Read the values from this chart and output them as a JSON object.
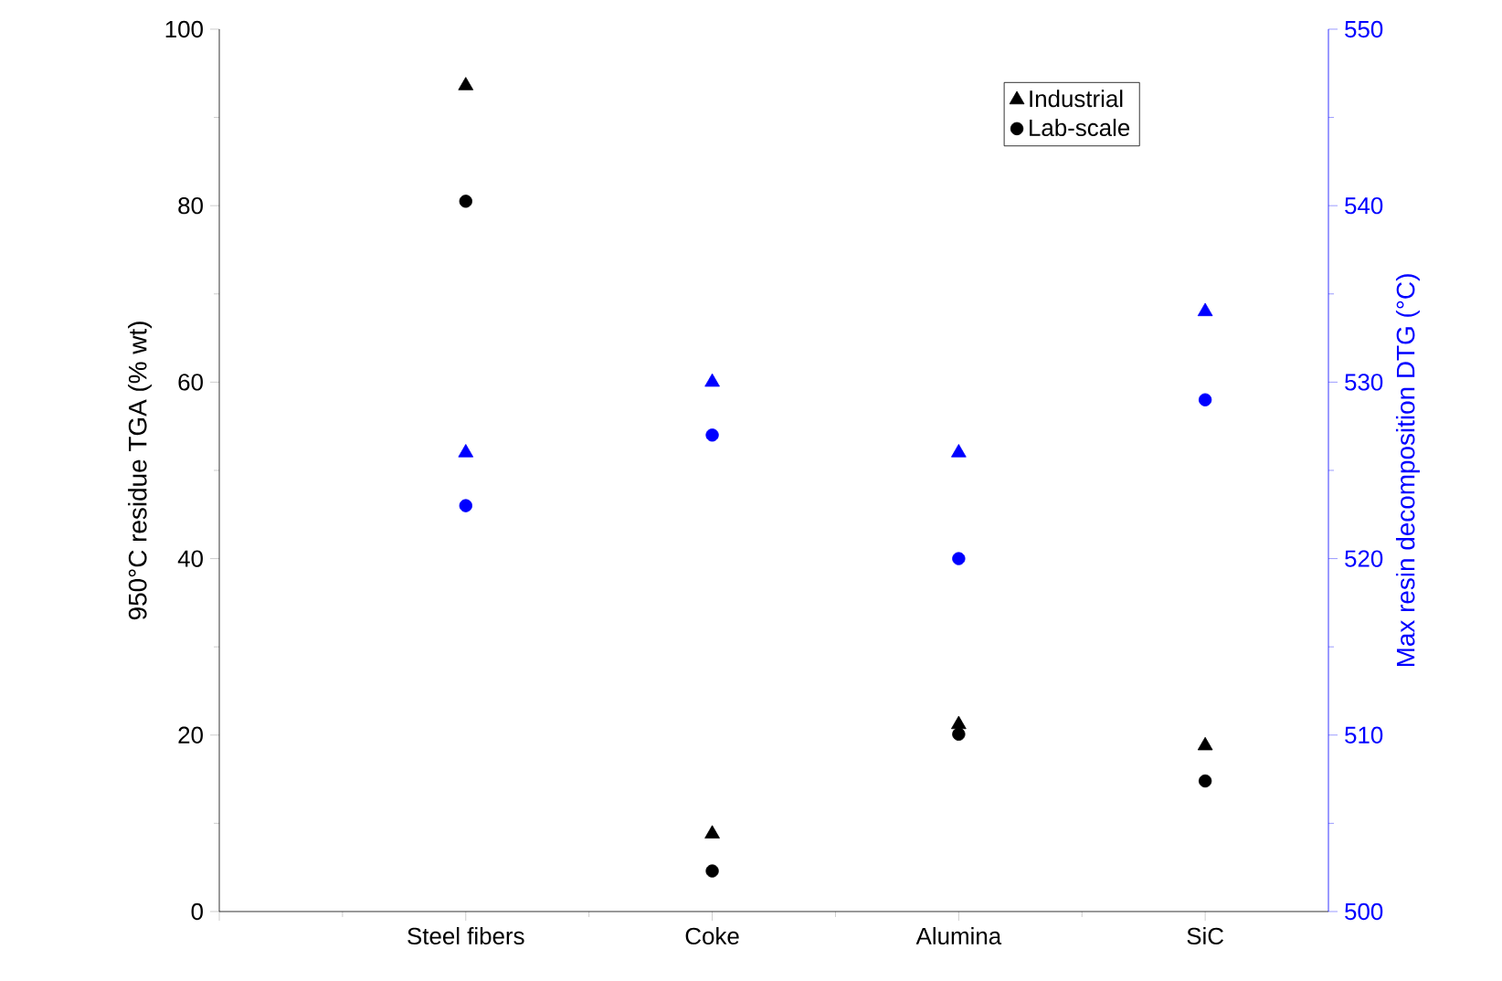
{
  "chart_data": {
    "type": "scatter",
    "categories": [
      null,
      "Steel fibers",
      "Coke",
      "Alumina",
      "SiC"
    ],
    "ylabel": "950°C residue TGA (% wt)",
    "y2label": "Max resin decomposition DTG (°C)",
    "ylim": [
      0,
      100
    ],
    "yticks": [
      0,
      20,
      40,
      60,
      80,
      100
    ],
    "y2lim": [
      500,
      550
    ],
    "y2ticks": [
      500,
      510,
      520,
      530,
      540,
      550
    ],
    "legend": "top right",
    "grid": false,
    "series": [
      {
        "name": "Industrial",
        "color": "#000000",
        "marker": "triangle",
        "axis": "y",
        "values": [
          null,
          93.6,
          8.8,
          21.2,
          18.8
        ]
      },
      {
        "name": "Lab-scale",
        "color": "#000000",
        "marker": "circle",
        "axis": "y",
        "values": [
          null,
          80.5,
          4.6,
          20.1,
          14.8
        ]
      },
      {
        "color": "#0000ff",
        "marker": "triangle",
        "axis": "y2",
        "values": [
          null,
          526,
          530,
          526,
          534
        ]
      },
      {
        "color": "#0000ff",
        "marker": "circle",
        "axis": "y2",
        "values": [
          null,
          523,
          527,
          520,
          529
        ]
      }
    ]
  }
}
